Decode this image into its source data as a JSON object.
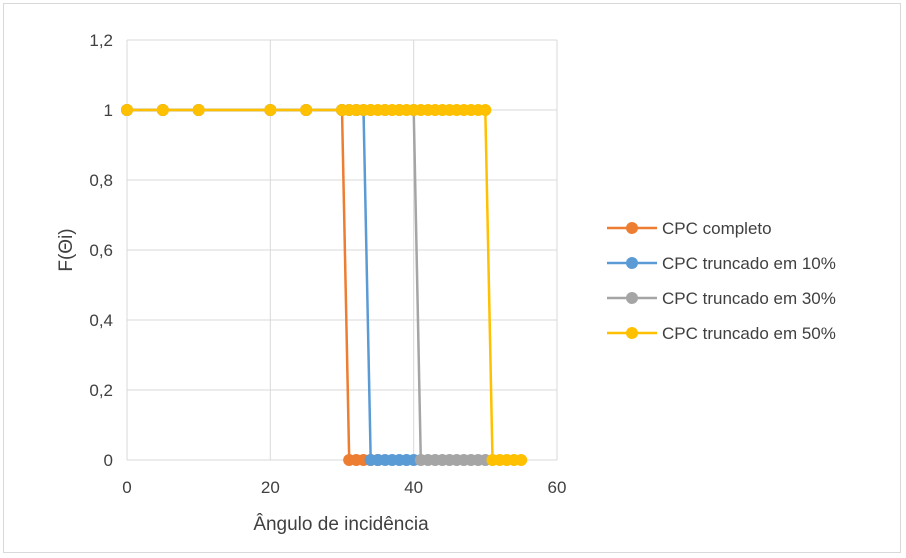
{
  "chart_data": {
    "type": "line",
    "title": "",
    "xlabel": "Ângulo de incidência",
    "ylabel": "F(Θi)",
    "xlim": [
      0,
      60
    ],
    "ylim": [
      0,
      1.2
    ],
    "x_ticks": [
      "0",
      "20",
      "40",
      "60"
    ],
    "y_ticks": [
      "0",
      "0,2",
      "0,4",
      "0,6",
      "0,8",
      "1",
      "1,2"
    ],
    "grid": true,
    "legend_position": "right",
    "series": [
      {
        "name": "CPC completo",
        "color": "#ED7D31",
        "x": [
          0,
          5,
          10,
          20,
          25,
          30,
          31,
          32,
          33,
          34,
          35
        ],
        "y": [
          1,
          1,
          1,
          1,
          1,
          1,
          0,
          0,
          0,
          0,
          0
        ]
      },
      {
        "name": "CPC truncado em 10%",
        "color": "#5B9BD5",
        "x": [
          0,
          5,
          10,
          20,
          25,
          30,
          31,
          32,
          33,
          34,
          35,
          36,
          37,
          38,
          39,
          40
        ],
        "y": [
          1,
          1,
          1,
          1,
          1,
          1,
          1,
          1,
          1,
          0,
          0,
          0,
          0,
          0,
          0,
          0
        ]
      },
      {
        "name": "CPC truncado em 30%",
        "color": "#A5A5A5",
        "x": [
          0,
          5,
          10,
          20,
          25,
          30,
          32,
          34,
          36,
          38,
          40,
          41,
          42,
          43,
          44,
          45,
          46,
          47,
          48,
          49,
          50
        ],
        "y": [
          1,
          1,
          1,
          1,
          1,
          1,
          1,
          1,
          1,
          1,
          1,
          0,
          0,
          0,
          0,
          0,
          0,
          0,
          0,
          0,
          0
        ]
      },
      {
        "name": "CPC truncado em 50%",
        "color": "#FFC000",
        "x": [
          0,
          5,
          10,
          20,
          25,
          30,
          31,
          32,
          33,
          34,
          35,
          36,
          37,
          38,
          39,
          40,
          41,
          42,
          43,
          44,
          45,
          46,
          47,
          48,
          49,
          50,
          51,
          52,
          53,
          54,
          55
        ],
        "y": [
          1,
          1,
          1,
          1,
          1,
          1,
          1,
          1,
          1,
          1,
          1,
          1,
          1,
          1,
          1,
          1,
          1,
          1,
          1,
          1,
          1,
          1,
          1,
          1,
          1,
          1,
          0,
          0,
          0,
          0,
          0
        ]
      }
    ]
  }
}
